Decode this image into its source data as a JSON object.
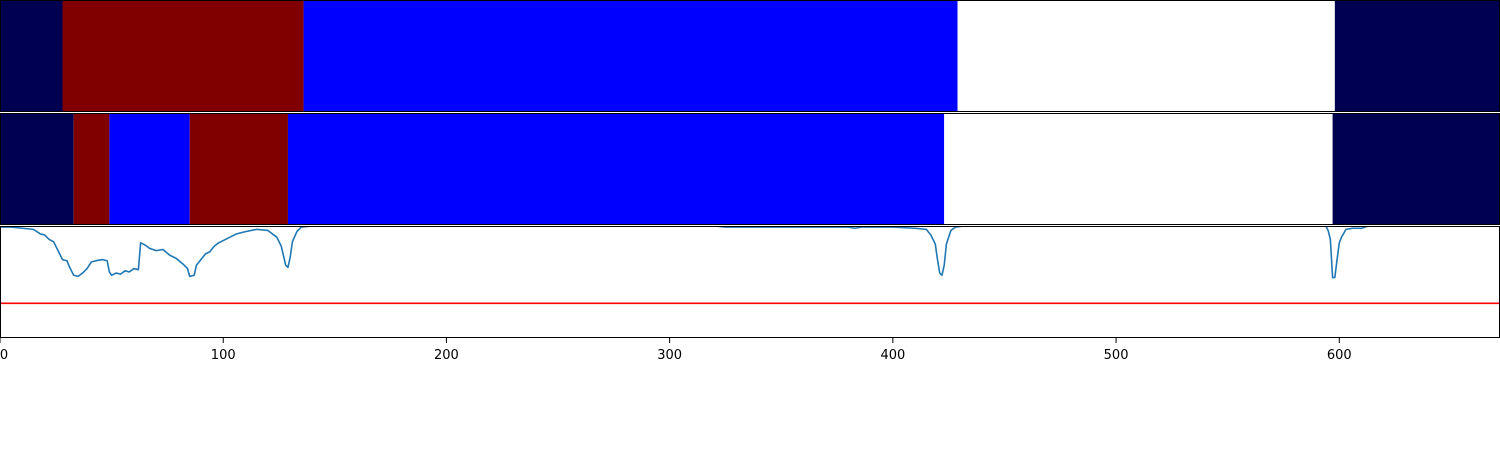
{
  "chart_data": [
    {
      "type": "segment-strip",
      "row": "top",
      "xlim": [
        0,
        672
      ],
      "segments": [
        {
          "start": 0,
          "end": 28,
          "color": "#000050"
        },
        {
          "start": 28,
          "end": 136,
          "color": "#800000"
        },
        {
          "start": 136,
          "end": 429,
          "color": "#0000ff"
        },
        {
          "start": 429,
          "end": 598,
          "color": "#ffffff"
        },
        {
          "start": 598,
          "end": 672,
          "color": "#000050"
        }
      ]
    },
    {
      "type": "segment-strip",
      "row": "middle",
      "xlim": [
        0,
        672
      ],
      "segments": [
        {
          "start": 0,
          "end": 33,
          "color": "#000050"
        },
        {
          "start": 33,
          "end": 49,
          "color": "#800000"
        },
        {
          "start": 49,
          "end": 85,
          "color": "#0000ff"
        },
        {
          "start": 85,
          "end": 129,
          "color": "#800000"
        },
        {
          "start": 129,
          "end": 423,
          "color": "#0000ff"
        },
        {
          "start": 423,
          "end": 597,
          "color": "#ffffff"
        },
        {
          "start": 597,
          "end": 672,
          "color": "#000050"
        }
      ]
    },
    {
      "type": "line",
      "row": "bottom",
      "xlim": [
        0,
        672
      ],
      "ylim": [
        0,
        1
      ],
      "series": [
        {
          "color": "#1f77b4",
          "points": [
            [
              0,
              0.99
            ],
            [
              5,
              0.99
            ],
            [
              10,
              0.98
            ],
            [
              15,
              0.97
            ],
            [
              18,
              0.93
            ],
            [
              20,
              0.92
            ],
            [
              22,
              0.88
            ],
            [
              24,
              0.86
            ],
            [
              26,
              0.78
            ],
            [
              28,
              0.7
            ],
            [
              30,
              0.69
            ],
            [
              31,
              0.64
            ],
            [
              33,
              0.56
            ],
            [
              35,
              0.55
            ],
            [
              37,
              0.58
            ],
            [
              39,
              0.62
            ],
            [
              41,
              0.68
            ],
            [
              43,
              0.69
            ],
            [
              46,
              0.7
            ],
            [
              48,
              0.69
            ],
            [
              49,
              0.59
            ],
            [
              50,
              0.56
            ],
            [
              52,
              0.58
            ],
            [
              54,
              0.57
            ],
            [
              56,
              0.6
            ],
            [
              58,
              0.59
            ],
            [
              60,
              0.62
            ],
            [
              62,
              0.61
            ],
            [
              63,
              0.85
            ],
            [
              65,
              0.83
            ],
            [
              67,
              0.8
            ],
            [
              70,
              0.78
            ],
            [
              73,
              0.79
            ],
            [
              76,
              0.74
            ],
            [
              79,
              0.71
            ],
            [
              82,
              0.66
            ],
            [
              84,
              0.62
            ],
            [
              85,
              0.55
            ],
            [
              87,
              0.56
            ],
            [
              88,
              0.65
            ],
            [
              90,
              0.7
            ],
            [
              92,
              0.75
            ],
            [
              94,
              0.77
            ],
            [
              96,
              0.82
            ],
            [
              98,
              0.85
            ],
            [
              100,
              0.87
            ],
            [
              103,
              0.9
            ],
            [
              106,
              0.93
            ],
            [
              110,
              0.95
            ],
            [
              115,
              0.97
            ],
            [
              120,
              0.96
            ],
            [
              124,
              0.9
            ],
            [
              126,
              0.82
            ],
            [
              128,
              0.65
            ],
            [
              129,
              0.63
            ],
            [
              130,
              0.72
            ],
            [
              131,
              0.86
            ],
            [
              133,
              0.95
            ],
            [
              135,
              0.99
            ],
            [
              140,
              1.0
            ],
            [
              320,
              1.0
            ],
            [
              325,
              0.99
            ],
            [
              340,
              0.99
            ],
            [
              380,
              0.99
            ],
            [
              383,
              0.98
            ],
            [
              386,
              0.99
            ],
            [
              400,
              0.99
            ],
            [
              410,
              0.98
            ],
            [
              415,
              0.97
            ],
            [
              417,
              0.92
            ],
            [
              419,
              0.84
            ],
            [
              420,
              0.7
            ],
            [
              421,
              0.58
            ],
            [
              422,
              0.56
            ],
            [
              423,
              0.65
            ],
            [
              424,
              0.84
            ],
            [
              426,
              0.96
            ],
            [
              428,
              0.99
            ],
            [
              432,
              1.0
            ],
            [
              545,
              1.0
            ],
            [
              594,
              1.0
            ],
            [
              595,
              0.96
            ],
            [
              596,
              0.88
            ],
            [
              597,
              0.54
            ],
            [
              598,
              0.54
            ],
            [
              599,
              0.7
            ],
            [
              600,
              0.85
            ],
            [
              601,
              0.9
            ],
            [
              603,
              0.97
            ],
            [
              606,
              0.98
            ],
            [
              610,
              0.98
            ],
            [
              613,
              1.0
            ],
            [
              640,
              1.0
            ]
          ]
        },
        {
          "color": "#ff0000",
          "points": [
            [
              0,
              0.31
            ],
            [
              672,
              0.31
            ]
          ]
        }
      ]
    }
  ],
  "axis": {
    "x_ticks": [
      0,
      100,
      200,
      300,
      400,
      500,
      600
    ],
    "x_tick_labels": [
      "0",
      "100",
      "200",
      "300",
      "400",
      "500",
      "600"
    ]
  }
}
